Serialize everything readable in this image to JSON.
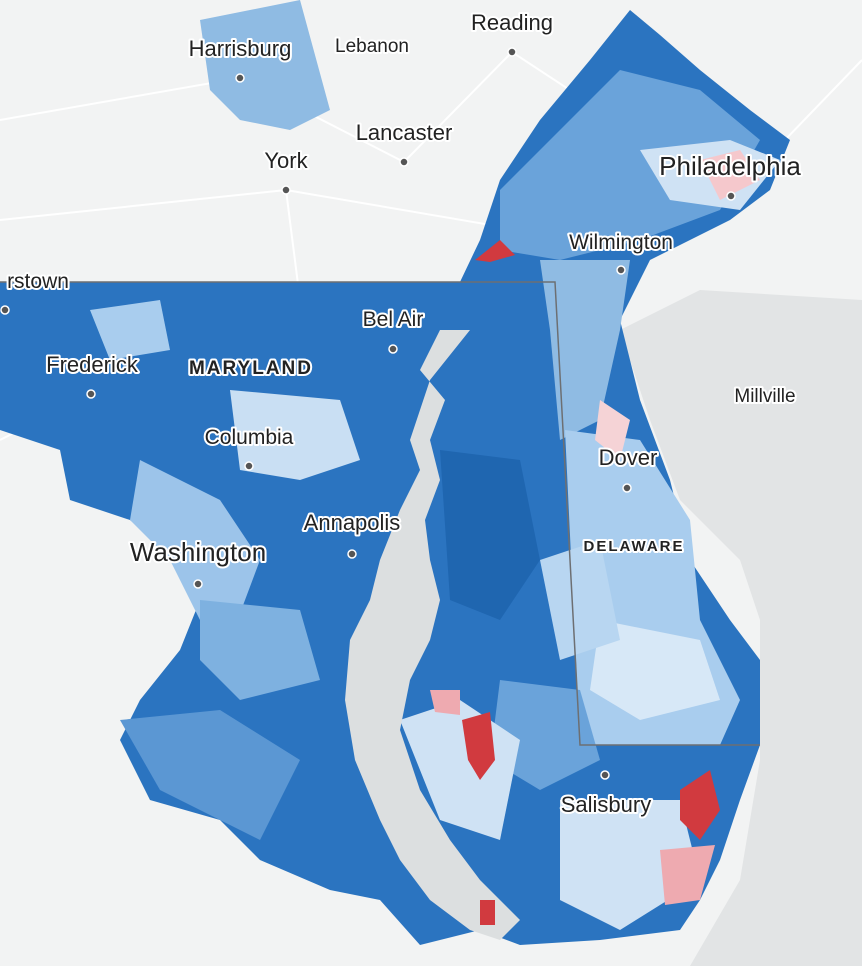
{
  "cities": [
    {
      "label": "Harrisburg"
    },
    {
      "label": "Lebanon"
    },
    {
      "label": "Reading"
    },
    {
      "label": "Lancaster"
    },
    {
      "label": "York"
    },
    {
      "label": "Philadelphia"
    },
    {
      "label": "Wilmington"
    },
    {
      "label": "rstown"
    },
    {
      "label": "Bel Air"
    },
    {
      "label": "Frederick"
    },
    {
      "label": "Columbia"
    },
    {
      "label": "Annapolis"
    },
    {
      "label": "Washington"
    },
    {
      "label": "Dover"
    },
    {
      "label": "Millville"
    },
    {
      "label": "Salisbury"
    }
  ],
  "states": [
    {
      "label": "MARYLAND"
    },
    {
      "label": "DELAWARE"
    }
  ]
}
